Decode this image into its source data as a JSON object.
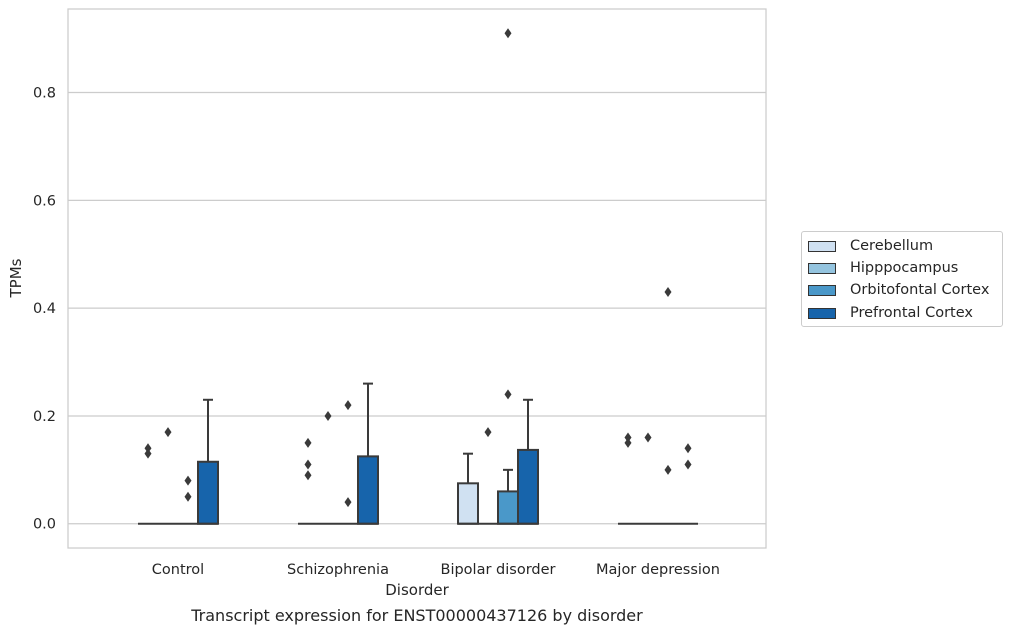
{
  "caption": "Transcript expression for ENST00000437126 by disorder",
  "chart_data": {
    "type": "box",
    "xlabel": "Disorder",
    "ylabel": "TPMs",
    "ylim": [
      -0.045,
      0.955
    ],
    "yticks": [
      0.0,
      0.2,
      0.4,
      0.6,
      0.8
    ],
    "ytick_labels": [
      "0.0",
      "0.2",
      "0.4",
      "0.6",
      "0.8"
    ],
    "grid": "horizontal",
    "legend_position": "right",
    "categories": [
      "Control",
      "Schizophrenia",
      "Bipolar disorder",
      "Major depression"
    ],
    "series": [
      {
        "name": "Cerebellum",
        "color": "#d0e1f2",
        "boxes": [
          {
            "category": "Control",
            "q1": 0,
            "median": 0,
            "q3": 0,
            "whisker_low": 0,
            "whisker_high": 0,
            "outliers": [
              0.13,
              0.14
            ]
          },
          {
            "category": "Schizophrenia",
            "q1": 0,
            "median": 0,
            "q3": 0,
            "whisker_low": 0,
            "whisker_high": 0,
            "outliers": [
              0.09,
              0.11,
              0.15
            ]
          },
          {
            "category": "Bipolar disorder",
            "q1": 0,
            "median": 0,
            "q3": 0.075,
            "whisker_low": 0,
            "whisker_high": 0.13,
            "outliers": []
          },
          {
            "category": "Major depression",
            "q1": 0,
            "median": 0,
            "q3": 0,
            "whisker_low": 0,
            "whisker_high": 0,
            "outliers": [
              0.15,
              0.16
            ]
          }
        ]
      },
      {
        "name": "Hipppocampus",
        "color": "#94c4df",
        "boxes": [
          {
            "category": "Control",
            "q1": 0,
            "median": 0,
            "q3": 0,
            "whisker_low": 0,
            "whisker_high": 0,
            "outliers": [
              0.17
            ]
          },
          {
            "category": "Schizophrenia",
            "q1": 0,
            "median": 0,
            "q3": 0,
            "whisker_low": 0,
            "whisker_high": 0,
            "outliers": [
              0.2
            ]
          },
          {
            "category": "Bipolar disorder",
            "q1": 0,
            "median": 0,
            "q3": 0,
            "whisker_low": 0,
            "whisker_high": 0,
            "outliers": [
              0.17
            ]
          },
          {
            "category": "Major depression",
            "q1": 0,
            "median": 0,
            "q3": 0,
            "whisker_low": 0,
            "whisker_high": 0,
            "outliers": [
              0.16
            ]
          }
        ]
      },
      {
        "name": "Orbitofontal Cortex",
        "color": "#4a98c9",
        "boxes": [
          {
            "category": "Control",
            "q1": 0,
            "median": 0,
            "q3": 0,
            "whisker_low": 0,
            "whisker_high": 0,
            "outliers": [
              0.05,
              0.08
            ]
          },
          {
            "category": "Schizophrenia",
            "q1": 0,
            "median": 0,
            "q3": 0,
            "whisker_low": 0,
            "whisker_high": 0,
            "outliers": [
              0.04,
              0.22
            ]
          },
          {
            "category": "Bipolar disorder",
            "q1": 0,
            "median": 0,
            "q3": 0.06,
            "whisker_low": 0,
            "whisker_high": 0.1,
            "outliers": [
              0.24,
              0.91
            ]
          },
          {
            "category": "Major depression",
            "q1": 0,
            "median": 0,
            "q3": 0,
            "whisker_low": 0,
            "whisker_high": 0,
            "outliers": [
              0.1,
              0.43
            ]
          }
        ]
      },
      {
        "name": "Prefrontal Cortex",
        "color": "#1764ab",
        "boxes": [
          {
            "category": "Control",
            "q1": 0,
            "median": 0,
            "q3": 0.115,
            "whisker_low": 0,
            "whisker_high": 0.23,
            "outliers": []
          },
          {
            "category": "Schizophrenia",
            "q1": 0,
            "median": 0,
            "q3": 0.125,
            "whisker_low": 0,
            "whisker_high": 0.26,
            "outliers": []
          },
          {
            "category": "Bipolar disorder",
            "q1": 0,
            "median": 0,
            "q3": 0.137,
            "whisker_low": 0,
            "whisker_high": 0.23,
            "outliers": []
          },
          {
            "category": "Major depression",
            "q1": 0,
            "median": 0,
            "q3": 0,
            "whisker_low": 0,
            "whisker_high": 0,
            "outliers": [
              0.11,
              0.14
            ]
          }
        ]
      }
    ]
  }
}
